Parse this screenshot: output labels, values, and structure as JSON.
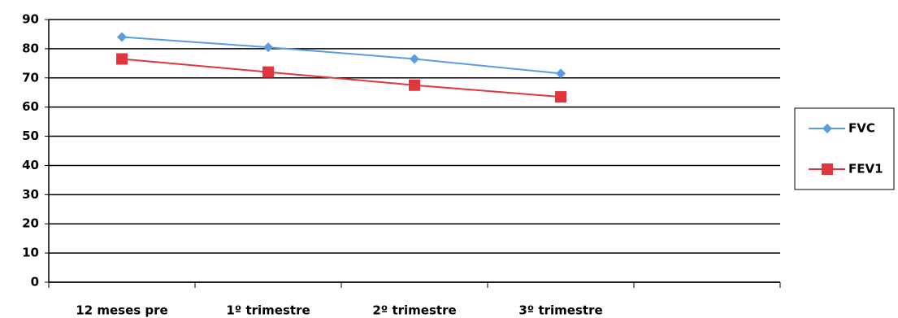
{
  "chart_data": {
    "type": "line",
    "categories": [
      "12 meses pre",
      "1º trimestre",
      "2º trimestre",
      "3º trimestre",
      null
    ],
    "series": [
      {
        "name": "FVC",
        "color": "#5b9be0",
        "marker": "diamond",
        "values": [
          84,
          80.5,
          76.5,
          71.5,
          null
        ]
      },
      {
        "name": "FEV1",
        "color": "#e0363c",
        "marker": "square",
        "values": [
          76.5,
          72,
          67.5,
          63.5,
          null
        ]
      }
    ],
    "ylim": [
      0,
      90
    ],
    "yticks": [
      0,
      10,
      20,
      30,
      40,
      50,
      60,
      70,
      80,
      90
    ],
    "grid": true,
    "legend": "right"
  }
}
